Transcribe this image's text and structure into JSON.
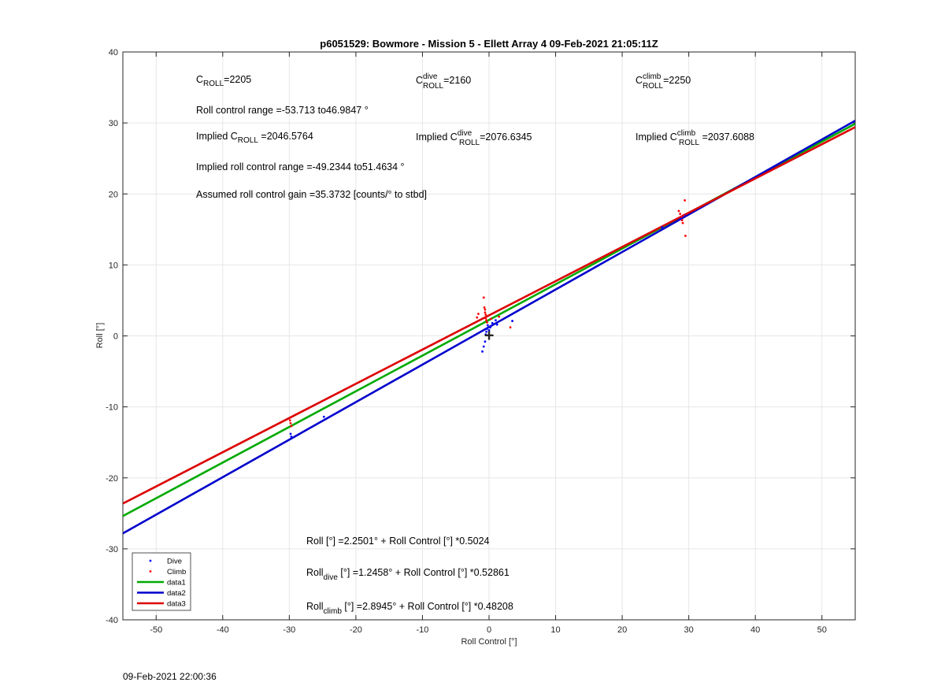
{
  "figure": {
    "title": "p6051529: Bowmore - Mission 5 - Ellett Array 4 09-Feb-2021 21:05:11Z",
    "footer_timestamp": "09-Feb-2021 22:00:36"
  },
  "annotations": {
    "c_roll": {
      "base": "C",
      "sub": "ROLL",
      "value": "=2205"
    },
    "c_roll_dive": {
      "base": "C",
      "sup": "dive",
      "sub": "ROLL",
      "value": "=2160"
    },
    "c_roll_climb": {
      "base": "C",
      "sup": "climb",
      "sub": "ROLL",
      "value": "=2250"
    },
    "roll_control_range": "Roll control range =-53.713 to46.9847 °",
    "implied_c_roll": {
      "prefix": "Implied C",
      "sub": "ROLL",
      "value": " =2046.5764"
    },
    "implied_c_roll_dive": {
      "prefix": "Implied C",
      "sup": "dive",
      "sub": "ROLL",
      "value": "=2076.6345"
    },
    "implied_c_roll_climb": {
      "prefix": "Implied C",
      "sup": "climb",
      "sub": "ROLL",
      "value": " =2037.6088"
    },
    "implied_range": "Implied roll control range =-49.2344 to51.4634 °",
    "gain": "Assumed roll control gain =35.3732 [counts/° to stbd]",
    "fit_all": "Roll [°] =2.2501° + Roll Control [°] *0.5024",
    "fit_dive": {
      "base": "Roll",
      "sub": "dive",
      "rest": " [°] =1.2458° + Roll Control [°] *0.52861"
    },
    "fit_climb": {
      "base": "Roll",
      "sub": "climb",
      "rest": " [°] =2.8945° + Roll Control [°] *0.48208"
    }
  },
  "chart_data": {
    "type": "scatter",
    "title": "p6051529: Bowmore - Mission 5 - Ellett Array 4 09-Feb-2021 21:05:11Z",
    "xlabel": "Roll Control [°]",
    "ylabel": "Roll [°]",
    "xlim": [
      -55,
      55
    ],
    "ylim": [
      -40,
      40
    ],
    "xticks": [
      -50,
      -40,
      -30,
      -20,
      -10,
      0,
      10,
      20,
      30,
      40,
      50
    ],
    "yticks": [
      -40,
      -30,
      -20,
      -10,
      0,
      10,
      20,
      30,
      40
    ],
    "grid": true,
    "legend_position": "bottom-left",
    "series": [
      {
        "name": "Dive",
        "kind": "points",
        "color": "#0000ff",
        "x": [
          -29.8,
          -29.7,
          -24.8,
          -1.0,
          -0.8,
          -0.6,
          -0.5,
          -0.4,
          -0.3,
          -0.2,
          0.0,
          0.2,
          0.5,
          1.0,
          1.2,
          3.5,
          26.0,
          28.8,
          29.0,
          29.3
        ],
        "y": [
          -13.8,
          -14.2,
          -11.4,
          -2.2,
          -1.5,
          -0.8,
          0.2,
          0.6,
          1.0,
          1.5,
          0.8,
          1.2,
          1.8,
          2.2,
          1.6,
          2.1,
          15.3,
          16.5,
          16.8,
          17.0
        ]
      },
      {
        "name": "Climb",
        "kind": "points",
        "color": "#ff0000",
        "x": [
          -29.9,
          -29.8,
          -29.7,
          -1.8,
          -1.6,
          -0.8,
          -0.7,
          -0.6,
          -0.6,
          -0.5,
          -0.5,
          -0.4,
          -0.3,
          0.3,
          1.5,
          3.2,
          28.5,
          28.7,
          28.9,
          29.0,
          29.1,
          29.2,
          29.4,
          29.5
        ],
        "y": [
          -11.9,
          -12.3,
          -12.7,
          2.6,
          3.1,
          5.4,
          4.0,
          3.7,
          3.3,
          3.0,
          2.5,
          2.2,
          1.9,
          2.4,
          2.7,
          1.2,
          17.6,
          17.2,
          16.8,
          16.3,
          15.9,
          17.0,
          19.1,
          14.1
        ]
      },
      {
        "name": "data1",
        "kind": "line",
        "color": "#00aa00",
        "intercept": 2.2501,
        "slope": 0.5024,
        "x": [
          -55,
          55
        ]
      },
      {
        "name": "data2",
        "kind": "line",
        "color": "#0000cc",
        "intercept": 1.2458,
        "slope": 0.52861,
        "x": [
          -55,
          55
        ]
      },
      {
        "name": "data3",
        "kind": "line",
        "color": "#dd0000",
        "intercept": 2.8945,
        "slope": 0.48208,
        "x": [
          -55,
          55
        ]
      }
    ],
    "marker": {
      "label": "+",
      "x": 0,
      "y": 0,
      "color": "#000000"
    }
  }
}
